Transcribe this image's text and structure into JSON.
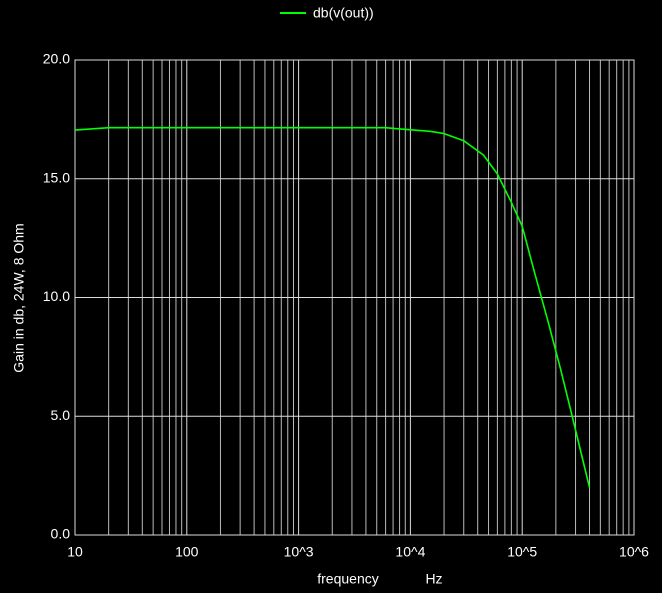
{
  "chart_data": {
    "type": "line",
    "y_label": "Gain in db, 24W, 8 Ohm",
    "x_label": "frequency",
    "x_unit": "Hz",
    "log_x": true,
    "grid": true,
    "minor_grid": true,
    "legend": "top",
    "x": [
      10,
      20,
      100,
      1000,
      6000,
      8000,
      15000,
      20000,
      30000,
      45000,
      60000,
      80000,
      100000,
      130000,
      170000,
      220000,
      280000,
      400000
    ],
    "series": [
      {
        "name": "db(v(out))",
        "color": "#00ff00",
        "values": [
          17.05,
          17.15,
          17.15,
          17.15,
          17.15,
          17.1,
          17.0,
          16.9,
          16.6,
          16.0,
          15.2,
          14.0,
          13.0,
          11.0,
          9.0,
          7.0,
          5.0,
          2.0
        ]
      }
    ],
    "xlim": [
      10,
      1000000
    ],
    "xticks": [
      10,
      100,
      {
        "value": 1000,
        "label": "10^3"
      },
      {
        "value": 10000,
        "label": "10^4"
      },
      {
        "value": 100000,
        "label": "10^5"
      },
      {
        "value": 1000000,
        "label": "10^6"
      }
    ],
    "ylim": [
      0,
      20
    ],
    "yticks": [
      {
        "value": 0,
        "label": "0.0"
      },
      {
        "value": 5,
        "label": "5.0"
      },
      {
        "value": 10,
        "label": "10.0"
      },
      {
        "value": 15,
        "label": "15.0"
      },
      {
        "value": 20,
        "label": "20.0"
      }
    ]
  }
}
